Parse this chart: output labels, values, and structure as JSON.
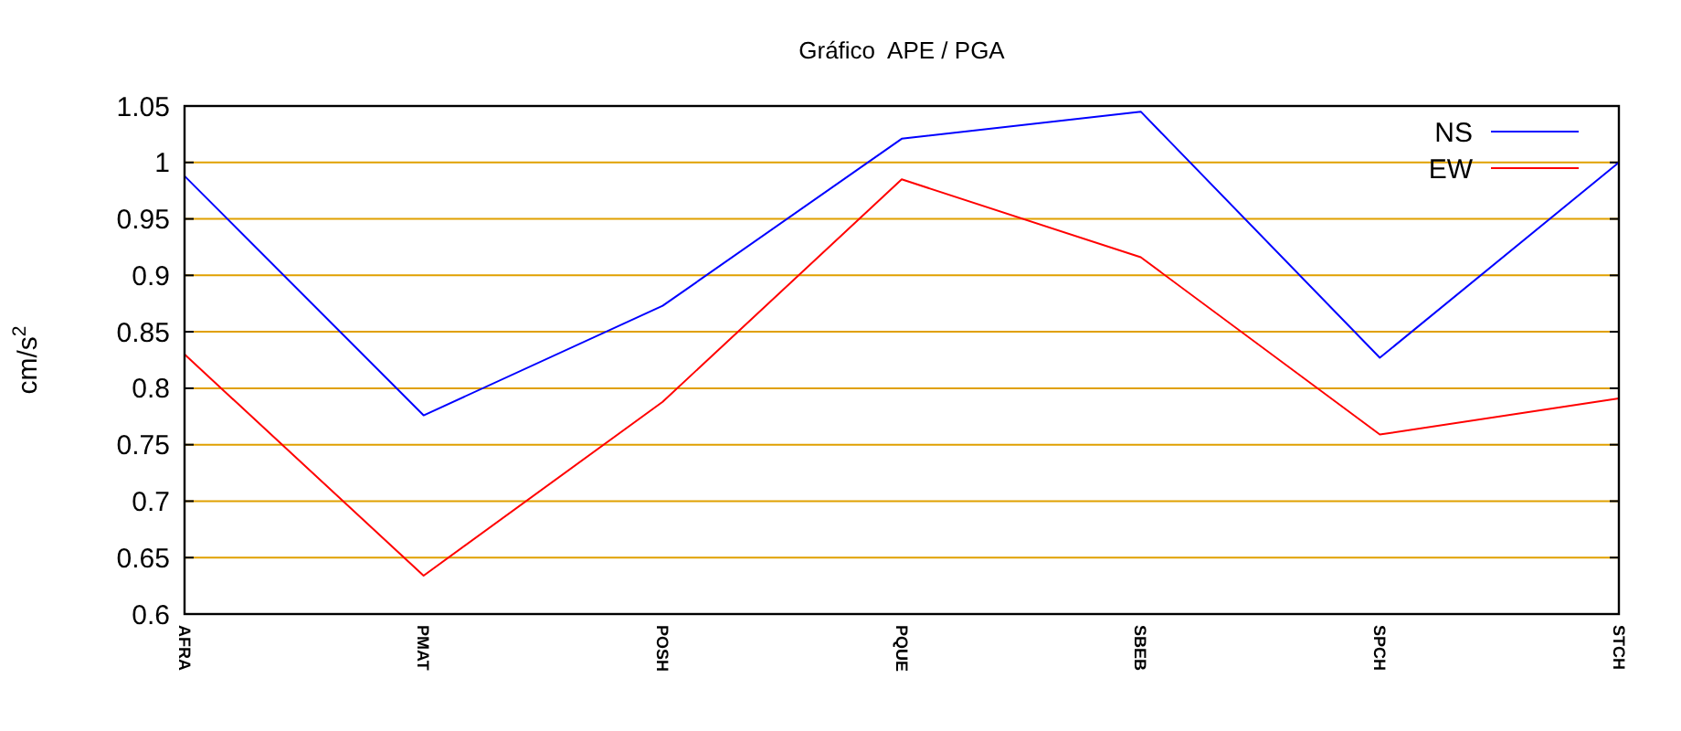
{
  "chart_data": {
    "type": "line",
    "title": "Gráfico  APE / PGA",
    "ylabel": "cm/s$^{2}$",
    "categories": [
      "AFRA",
      "PMAT",
      "POSH",
      "PQUE",
      "SBEB",
      "SPCH",
      "STCH"
    ],
    "series": [
      {
        "name": "NS",
        "color": "#0000ff",
        "values": [
          0.988,
          0.776,
          0.873,
          1.021,
          1.045,
          0.827,
          1.0
        ]
      },
      {
        "name": "EW",
        "color": "#ff0000",
        "values": [
          0.83,
          0.634,
          0.788,
          0.985,
          0.916,
          0.759,
          0.791
        ]
      }
    ],
    "ylim": [
      0.6,
      1.05
    ],
    "yticks": [
      0.6,
      0.65,
      0.7,
      0.75,
      0.8,
      0.85,
      0.9,
      0.95,
      1,
      1.05
    ],
    "grid": "y",
    "legend": "top right",
    "marker": "none",
    "line_style": "solid"
  }
}
